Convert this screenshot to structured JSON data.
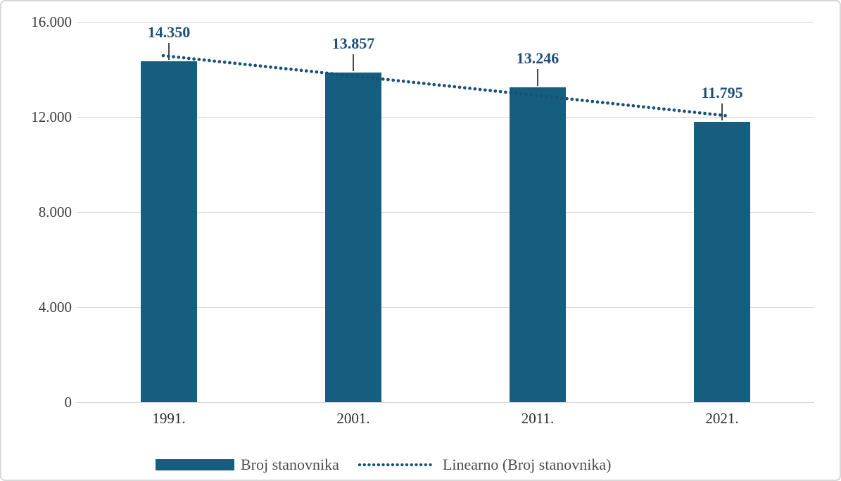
{
  "chart_data": {
    "type": "bar",
    "title": "",
    "xlabel": "",
    "ylabel": "",
    "categories": [
      "1991.",
      "2001.",
      "2011.",
      "2021."
    ],
    "series": [
      {
        "name": "Broj stanovnika",
        "values": [
          14350,
          13857,
          13246,
          11795
        ]
      }
    ],
    "value_labels": [
      "14.350",
      "13.857",
      "13.246",
      "11.795"
    ],
    "yticks": [
      {
        "value": 0,
        "label": "0"
      },
      {
        "value": 4000,
        "label": "4.000"
      },
      {
        "value": 8000,
        "label": "8.000"
      },
      {
        "value": 12000,
        "label": "12.000"
      },
      {
        "value": 16000,
        "label": "16.000"
      }
    ],
    "ylim": [
      0,
      16000
    ],
    "grid": true,
    "legend_position": "bottom",
    "trendline": {
      "name": "Linearno (Broj stanovnika)",
      "style": "dotted",
      "start_value": 14553,
      "end_value": 12071
    }
  },
  "legend": {
    "series_label": "Broj stanovnika",
    "trend_label": "Linearno (Broj stanovnika)"
  },
  "colors": {
    "bar": "#155e80",
    "trend_dots": "#17507a",
    "data_label_text": "#1f4e79",
    "grid_line": "#d6d6d6",
    "axis_text": "#3b3b3b",
    "xaxis_text": "#2b2b2b",
    "legend_text": "#4d4d4d",
    "leader_line": "#4a4a4a",
    "frame_border": "#d9d9d9"
  }
}
